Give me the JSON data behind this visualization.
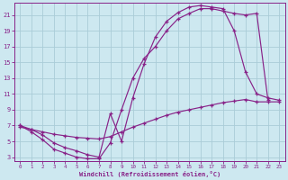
{
  "xlabel": "Windchill (Refroidissement éolien,°C)",
  "bg_color": "#cde8f0",
  "line_color": "#882288",
  "grid_color": "#aaccd8",
  "xlim": [
    -0.5,
    23.5
  ],
  "ylim": [
    2.5,
    22.5
  ],
  "xticks": [
    0,
    1,
    2,
    3,
    4,
    5,
    6,
    7,
    8,
    9,
    10,
    11,
    12,
    13,
    14,
    15,
    16,
    17,
    18,
    19,
    20,
    21,
    22,
    23
  ],
  "yticks": [
    3,
    5,
    7,
    9,
    11,
    13,
    15,
    17,
    19,
    21
  ],
  "curve1_x": [
    0,
    1,
    2,
    3,
    4,
    5,
    6,
    7,
    8,
    9,
    10,
    11,
    12,
    13,
    14,
    15,
    16,
    17,
    18,
    19,
    20,
    21,
    22,
    23
  ],
  "curve1_y": [
    7.0,
    6.5,
    5.8,
    4.8,
    4.2,
    3.8,
    3.3,
    3.0,
    8.5,
    5.0,
    10.5,
    14.8,
    18.2,
    20.2,
    21.3,
    22.0,
    22.2,
    22.0,
    21.8,
    19.0,
    13.8,
    11.0,
    10.5,
    10.2
  ],
  "curve2_x": [
    0,
    1,
    2,
    3,
    4,
    5,
    6,
    7,
    8,
    9,
    10,
    11,
    12,
    13,
    14,
    15,
    16,
    17,
    18,
    19,
    20,
    21,
    22
  ],
  "curve2_y": [
    7.0,
    6.2,
    5.2,
    4.0,
    3.5,
    3.0,
    2.8,
    2.8,
    4.8,
    9.0,
    13.0,
    15.5,
    17.0,
    19.0,
    20.5,
    21.2,
    21.8,
    21.8,
    21.5,
    21.2,
    21.0,
    21.2,
    10.2
  ],
  "curve3_x": [
    0,
    1,
    2,
    3,
    4,
    5,
    6,
    7,
    8,
    9,
    10,
    11,
    12,
    13,
    14,
    15,
    16,
    17,
    18,
    19,
    20,
    21,
    22,
    23
  ],
  "curve3_y": [
    6.8,
    6.5,
    6.2,
    5.9,
    5.7,
    5.5,
    5.4,
    5.3,
    5.6,
    6.2,
    6.8,
    7.3,
    7.8,
    8.3,
    8.7,
    9.0,
    9.3,
    9.6,
    9.9,
    10.1,
    10.3,
    10.0,
    10.0,
    10.0
  ]
}
